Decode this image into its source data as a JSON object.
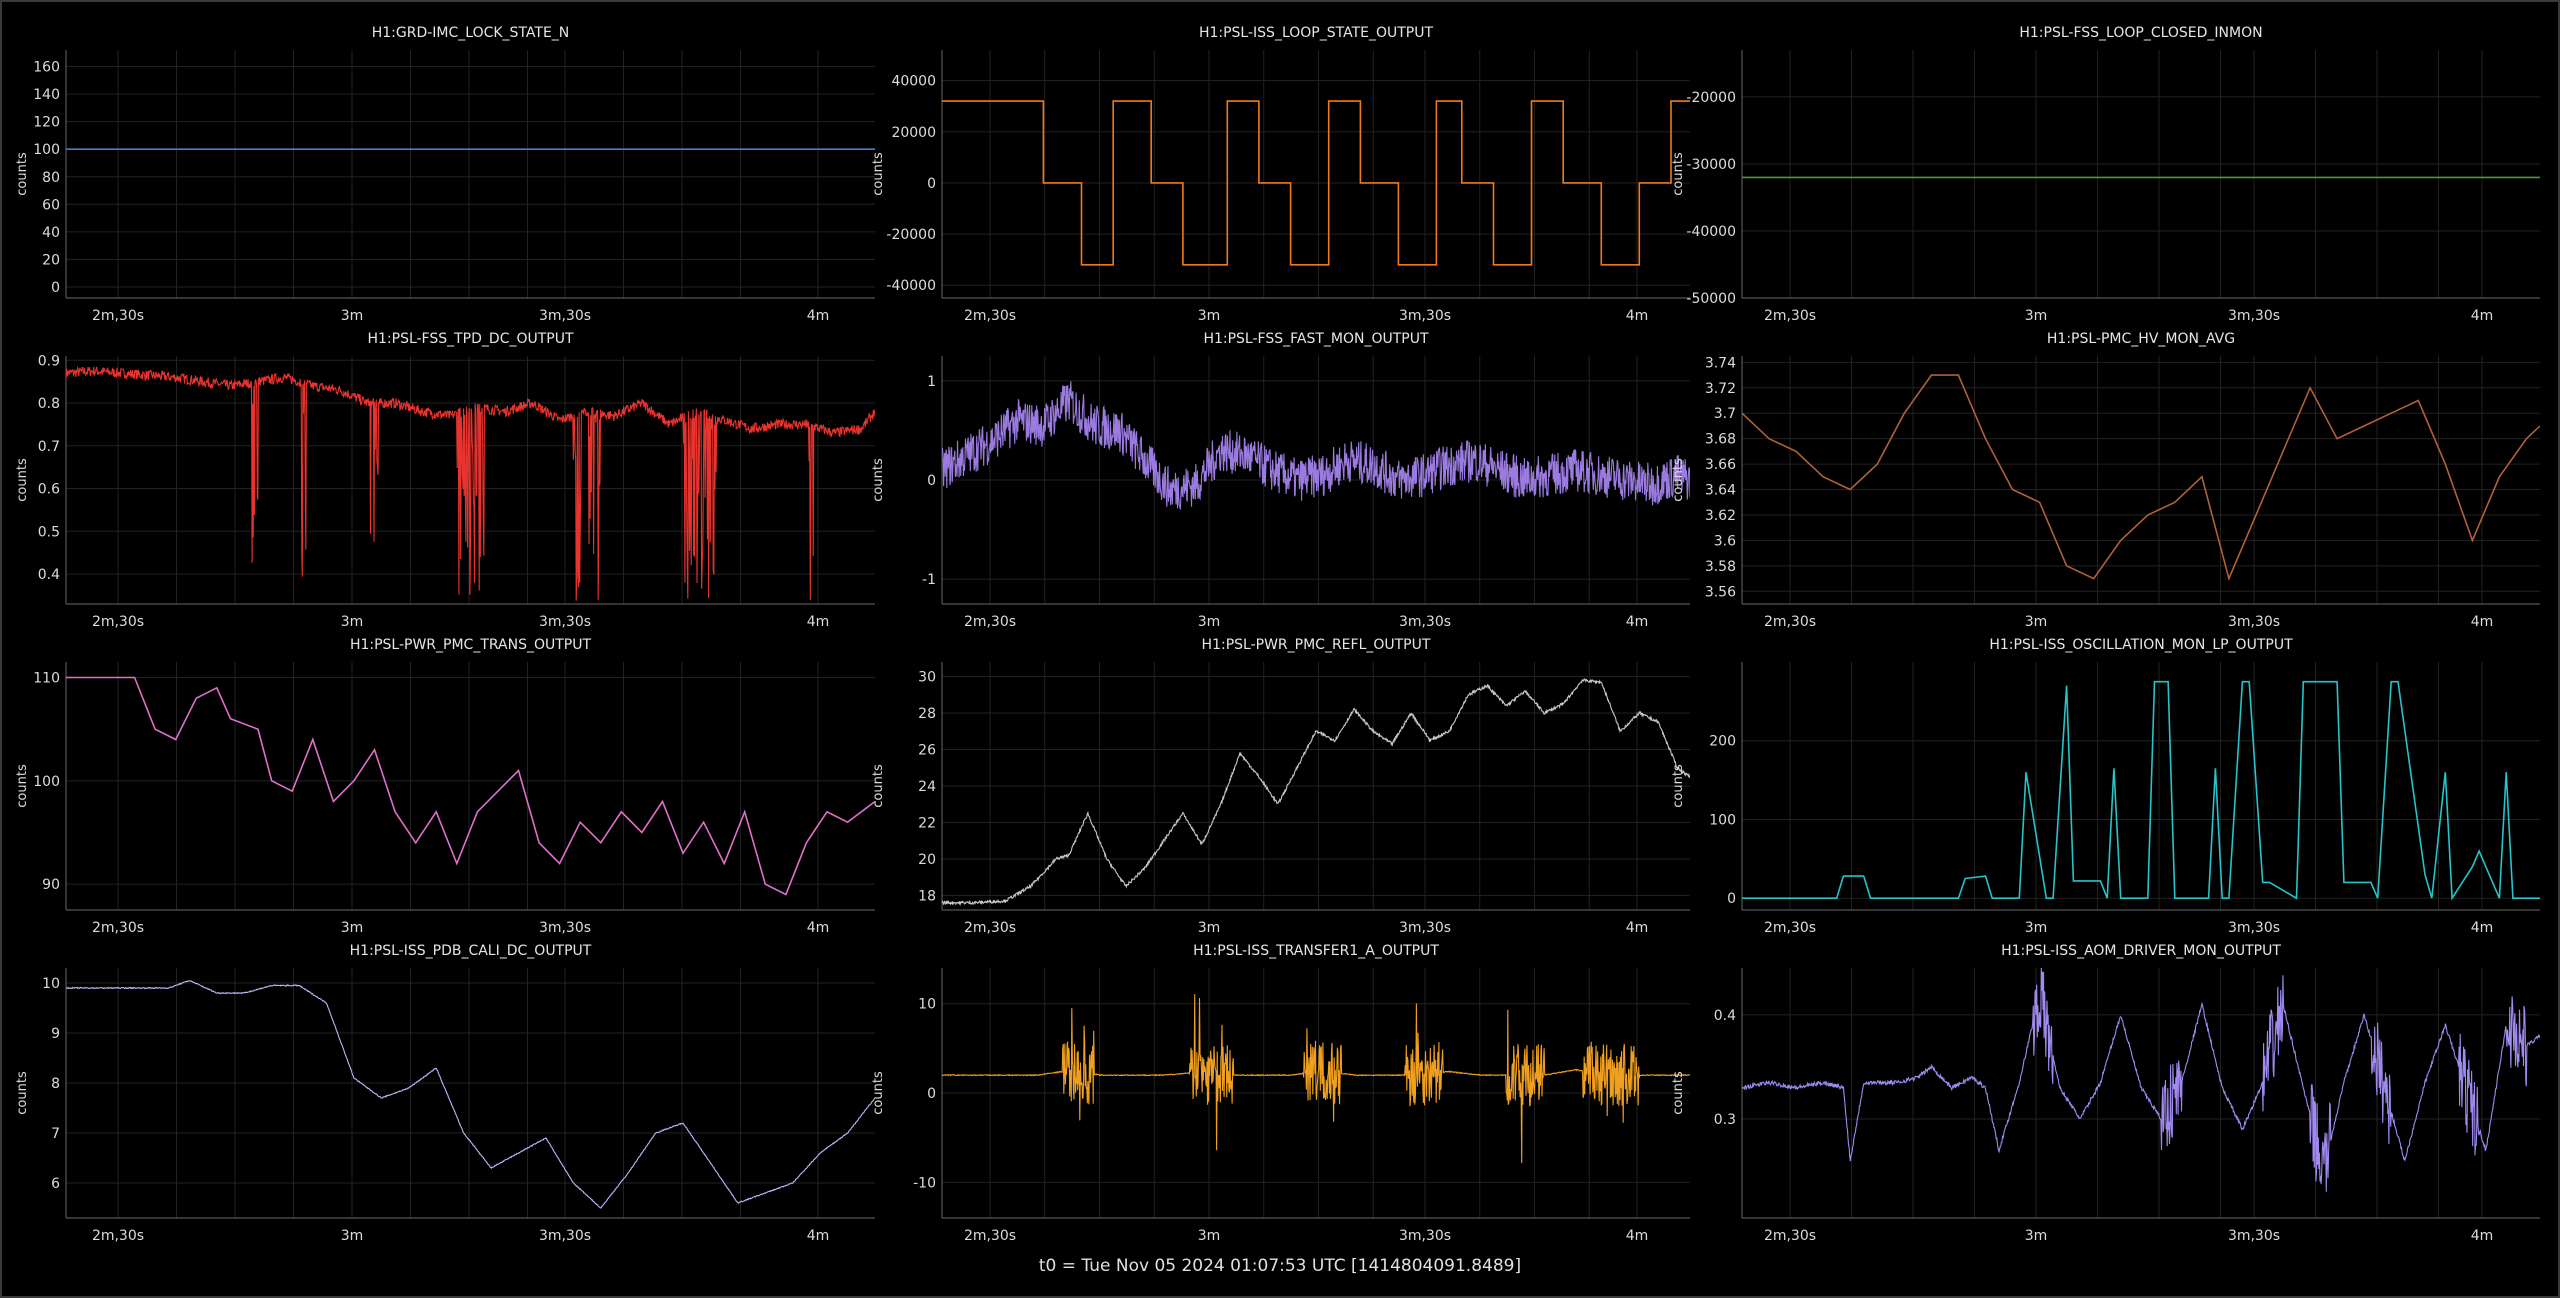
{
  "footer": "t0 = Tue Nov 05 2024 01:07:53 UTC [1414804091.8489]",
  "chart_data": [
    {
      "type": "line",
      "title": "H1:GRD-IMC_LOCK_STATE_N",
      "ylabel": "counts",
      "color": "#4a7bd0",
      "xticks": [
        "2m,30s",
        "3m",
        "3m,30s",
        "4m"
      ],
      "xlim": [
        140,
        258
      ],
      "yticks": [
        0,
        20,
        40,
        60,
        80,
        100,
        120,
        140,
        160
      ],
      "ylim": [
        -8,
        172
      ],
      "x": [
        140,
        258
      ],
      "y": [
        100,
        100
      ]
    },
    {
      "type": "line",
      "title": "H1:PSL-ISS_LOOP_STATE_OUTPUT",
      "ylabel": "counts",
      "color": "#f07a1a",
      "xticks": [
        "2m,30s",
        "3m",
        "3m,30s",
        "4m"
      ],
      "xlim": [
        140,
        258
      ],
      "yticks": [
        -40000,
        -20000,
        0,
        20000,
        40000
      ],
      "ylim": [
        -45000,
        52000
      ],
      "x": [
        140,
        156,
        156,
        162,
        162,
        167,
        167,
        173,
        173,
        178,
        178,
        185,
        185,
        190,
        190,
        195,
        195,
        201,
        201,
        206,
        206,
        212,
        212,
        218,
        218,
        222,
        222,
        227,
        227,
        233,
        233,
        238,
        238,
        244,
        244,
        250,
        250,
        255,
        255,
        258
      ],
      "y": [
        32000,
        32000,
        0,
        0,
        -32000,
        -32000,
        32000,
        32000,
        0,
        0,
        -32000,
        -32000,
        32000,
        32000,
        0,
        0,
        -32000,
        -32000,
        32000,
        32000,
        0,
        0,
        -32000,
        -32000,
        32000,
        32000,
        0,
        0,
        -32000,
        -32000,
        32000,
        32000,
        0,
        0,
        -32000,
        -32000,
        0,
        0,
        32000,
        32000
      ]
    },
    {
      "type": "line",
      "title": "H1:PSL-FSS_LOOP_CLOSED_INMON",
      "ylabel": "counts",
      "color": "#4a9a3a",
      "xticks": [
        "2m,30s",
        "3m",
        "3m,30s",
        "4m"
      ],
      "xlim": [
        140,
        258
      ],
      "yticks": [
        -50000,
        -40000,
        -30000,
        -20000
      ],
      "ylim": [
        -50000,
        -13000
      ],
      "x": [
        140,
        258
      ],
      "y": [
        -32000,
        -32000
      ]
    },
    {
      "type": "line",
      "title": "H1:PSL-FSS_TPD_DC_OUTPUT",
      "ylabel": "counts",
      "color": "#e8332e",
      "xticks": [
        "2m,30s",
        "3m",
        "3m,30s",
        "4m"
      ],
      "xlim": [
        140,
        258
      ],
      "yticks": [
        0.4,
        0.5,
        0.6,
        0.7,
        0.8,
        0.9
      ],
      "ylim": [
        0.33,
        0.91
      ],
      "x": [
        140,
        144,
        148,
        152,
        156,
        160,
        164,
        168,
        172,
        176,
        180,
        184,
        188,
        192,
        196,
        200,
        204,
        208,
        212,
        216,
        220,
        224,
        228,
        232,
        236,
        240,
        244,
        248,
        252,
        256,
        258
      ],
      "y": [
        0.87,
        0.875,
        0.87,
        0.865,
        0.86,
        0.85,
        0.84,
        0.85,
        0.86,
        0.84,
        0.83,
        0.8,
        0.8,
        0.78,
        0.77,
        0.79,
        0.78,
        0.8,
        0.76,
        0.78,
        0.77,
        0.8,
        0.75,
        0.78,
        0.76,
        0.74,
        0.75,
        0.75,
        0.73,
        0.74,
        0.78
      ]
    },
    {
      "type": "line",
      "title": "H1:PSL-FSS_FAST_MON_OUTPUT",
      "ylabel": "counts",
      "color": "#9b7be0",
      "xticks": [
        "2m,30s",
        "3m",
        "3m,30s",
        "4m"
      ],
      "xlim": [
        140,
        258
      ],
      "yticks": [
        -1,
        0,
        1
      ],
      "ylim": [
        -1.25,
        1.25
      ],
      "x": [
        140,
        144,
        148,
        152,
        156,
        160,
        164,
        168,
        172,
        176,
        180,
        184,
        188,
        192,
        196,
        200,
        204,
        208,
        212,
        216,
        220,
        224,
        228,
        232,
        236,
        240,
        244,
        248,
        252,
        256,
        258
      ],
      "y": [
        0.1,
        0.25,
        0.4,
        0.6,
        0.55,
        0.8,
        0.55,
        0.5,
        0.2,
        -0.1,
        -0.05,
        0.3,
        0.25,
        0.1,
        0.0,
        0.05,
        0.2,
        0.15,
        0.0,
        0.05,
        0.15,
        0.2,
        0.1,
        0.0,
        0.05,
        0.1,
        0.05,
        0.0,
        -0.05,
        0.05,
        0.0
      ]
    },
    {
      "type": "line",
      "title": "H1:PSL-PMC_HV_MON_AVG",
      "ylabel": "counts",
      "color": "#b0603a",
      "xticks": [
        "2m,30s",
        "3m",
        "3m,30s",
        "4m"
      ],
      "xlim": [
        140,
        258
      ],
      "yticks": [
        3.56,
        3.58,
        3.6,
        3.62,
        3.64,
        3.66,
        3.68,
        3.7,
        3.72,
        3.74
      ],
      "ylim": [
        3.55,
        3.745
      ],
      "x": [
        140,
        144,
        148,
        152,
        156,
        160,
        164,
        168,
        172,
        176,
        180,
        184,
        188,
        192,
        196,
        200,
        204,
        208,
        212,
        216,
        220,
        224,
        228,
        232,
        236,
        240,
        244,
        248,
        252,
        256,
        258
      ],
      "y": [
        3.7,
        3.68,
        3.67,
        3.65,
        3.64,
        3.66,
        3.7,
        3.73,
        3.73,
        3.68,
        3.64,
        3.63,
        3.58,
        3.57,
        3.6,
        3.62,
        3.63,
        3.65,
        3.57,
        3.62,
        3.67,
        3.72,
        3.68,
        3.69,
        3.7,
        3.71,
        3.66,
        3.6,
        3.65,
        3.68,
        3.69
      ]
    },
    {
      "type": "line",
      "title": "H1:PSL-PWR_PMC_TRANS_OUTPUT",
      "ylabel": "counts",
      "color": "#e070c8",
      "xticks": [
        "2m,30s",
        "3m",
        "3m,30s",
        "4m"
      ],
      "xlim": [
        140,
        258
      ],
      "yticks": [
        90,
        100,
        110
      ],
      "ylim": [
        87.5,
        111.5
      ],
      "x": [
        140,
        145,
        150,
        153,
        156,
        159,
        162,
        164,
        168,
        170,
        173,
        176,
        179,
        182,
        185,
        188,
        191,
        194,
        197,
        200,
        203,
        206,
        209,
        212,
        215,
        218,
        221,
        224,
        227,
        230,
        233,
        236,
        239,
        242,
        245,
        248,
        251,
        254,
        258
      ],
      "y": [
        110,
        110,
        110,
        105,
        104,
        108,
        109,
        106,
        105,
        100,
        99,
        104,
        98,
        100,
        103,
        97,
        94,
        97,
        92,
        97,
        99,
        101,
        94,
        92,
        96,
        94,
        97,
        95,
        98,
        93,
        96,
        92,
        97,
        90,
        89,
        94,
        97,
        96,
        98
      ]
    },
    {
      "type": "line",
      "title": "H1:PSL-PWR_PMC_REFL_OUTPUT",
      "ylabel": "counts",
      "color": "#c8c8c8",
      "xticks": [
        "2m,30s",
        "3m",
        "3m,30s",
        "4m"
      ],
      "xlim": [
        140,
        258
      ],
      "yticks": [
        18,
        20,
        22,
        24,
        26,
        28,
        30
      ],
      "ylim": [
        17.2,
        30.8
      ],
      "x": [
        140,
        145,
        150,
        154,
        158,
        160,
        163,
        166,
        169,
        172,
        175,
        178,
        181,
        184,
        187,
        190,
        193,
        196,
        199,
        202,
        205,
        208,
        211,
        214,
        217,
        220,
        223,
        226,
        229,
        232,
        235,
        238,
        241,
        244,
        247,
        250,
        253,
        256,
        258
      ],
      "y": [
        17.6,
        17.6,
        17.7,
        18.5,
        20,
        20.2,
        22.5,
        20,
        18.5,
        19.5,
        21,
        22.5,
        20.8,
        23,
        25.8,
        24.5,
        23,
        25,
        27,
        26.5,
        28.2,
        27,
        26.3,
        28,
        26.5,
        27,
        29,
        29.5,
        28.4,
        29.2,
        28,
        28.5,
        29.8,
        29.7,
        27,
        28,
        27.5,
        25,
        24.5
      ]
    },
    {
      "type": "line",
      "title": "H1:PSL-ISS_OSCILLATION_MON_LP_OUTPUT",
      "ylabel": "counts",
      "color": "#26c3c8",
      "xticks": [
        "2m,30s",
        "3m",
        "3m,30s",
        "4m"
      ],
      "xlim": [
        140,
        258
      ],
      "yticks": [
        0,
        100,
        200
      ],
      "ylim": [
        -15,
        300
      ],
      "x": [
        140,
        150,
        154,
        155,
        158,
        159,
        172,
        173,
        176,
        177,
        181,
        182,
        185,
        186,
        188,
        189,
        193,
        194,
        195,
        196,
        200,
        201,
        203,
        204,
        209,
        210,
        211,
        212,
        214,
        215,
        217,
        218,
        222,
        223,
        228,
        229,
        233,
        234,
        236,
        237,
        241,
        242,
        244,
        245,
        248,
        249,
        252,
        253,
        254,
        255,
        258
      ],
      "y": [
        0,
        0,
        0,
        28,
        28,
        0,
        0,
        25,
        28,
        0,
        0,
        160,
        0,
        0,
        270,
        22,
        22,
        0,
        165,
        0,
        0,
        275,
        275,
        0,
        0,
        165,
        0,
        0,
        275,
        275,
        20,
        20,
        0,
        275,
        275,
        20,
        20,
        0,
        275,
        275,
        30,
        0,
        160,
        0,
        40,
        60,
        0,
        160,
        0,
        0,
        0
      ]
    },
    {
      "type": "line",
      "title": "H1:PSL-ISS_PDB_CALI_DC_OUTPUT",
      "ylabel": "counts",
      "color": "#b8b8f8",
      "xticks": [
        "2m,30s",
        "3m",
        "3m,30s",
        "4m"
      ],
      "xlim": [
        140,
        258
      ],
      "yticks": [
        6,
        7,
        8,
        9,
        10
      ],
      "ylim": [
        5.3,
        10.3
      ],
      "x": [
        140,
        145,
        150,
        155,
        158,
        162,
        166,
        170,
        174,
        178,
        182,
        186,
        190,
        194,
        198,
        202,
        206,
        210,
        214,
        218,
        222,
        226,
        230,
        234,
        238,
        242,
        246,
        250,
        254,
        258
      ],
      "y": [
        9.9,
        9.9,
        9.9,
        9.9,
        10.05,
        9.8,
        9.8,
        9.95,
        9.95,
        9.6,
        8.1,
        7.7,
        7.9,
        8.3,
        7.0,
        6.3,
        6.6,
        6.9,
        6.0,
        5.5,
        6.2,
        7.0,
        7.2,
        6.4,
        5.6,
        5.8,
        6.0,
        6.6,
        7.0,
        7.7
      ]
    },
    {
      "type": "line",
      "title": "H1:PSL-ISS_TRANSFER1_A_OUTPUT",
      "ylabel": "counts",
      "color": "#f0a020",
      "xticks": [
        "2m,30s",
        "3m",
        "3m,30s",
        "4m"
      ],
      "xlim": [
        140,
        258
      ],
      "yticks": [
        -10,
        0,
        10
      ],
      "ylim": [
        -14,
        14
      ],
      "x": [
        140,
        145,
        150,
        155,
        160,
        165,
        170,
        175,
        180,
        185,
        190,
        195,
        200,
        205,
        210,
        215,
        220,
        225,
        230,
        235,
        240,
        245,
        250,
        255,
        258
      ],
      "y": [
        2,
        2,
        2,
        2,
        2.5,
        2,
        2,
        2,
        2.3,
        2,
        2,
        2,
        2.5,
        2,
        2,
        2,
        2.4,
        2,
        2,
        2,
        2.6,
        2,
        2,
        2,
        2
      ]
    },
    {
      "type": "line",
      "title": "H1:PSL-ISS_AOM_DRIVER_MON_OUTPUT",
      "ylabel": "counts",
      "color": "#a08af0",
      "xticks": [
        "2m,30s",
        "3m",
        "3m,30s",
        "4m"
      ],
      "xlim": [
        140,
        258
      ],
      "yticks": [
        0.3,
        0.4
      ],
      "ylim": [
        0.205,
        0.445
      ],
      "x": [
        140,
        144,
        148,
        152,
        155,
        156,
        158,
        163,
        166,
        168,
        171,
        174,
        176,
        178,
        181,
        184,
        187,
        190,
        193,
        196,
        199,
        202,
        205,
        208,
        211,
        214,
        217,
        220,
        223,
        226,
        229,
        232,
        235,
        238,
        241,
        244,
        247,
        250,
        253,
        256,
        258
      ],
      "y": [
        0.33,
        0.335,
        0.33,
        0.335,
        0.33,
        0.26,
        0.335,
        0.335,
        0.34,
        0.35,
        0.33,
        0.34,
        0.33,
        0.27,
        0.335,
        0.42,
        0.33,
        0.3,
        0.335,
        0.4,
        0.33,
        0.3,
        0.335,
        0.41,
        0.33,
        0.29,
        0.335,
        0.41,
        0.33,
        0.25,
        0.335,
        0.4,
        0.33,
        0.26,
        0.335,
        0.39,
        0.33,
        0.27,
        0.39,
        0.37,
        0.38
      ]
    }
  ]
}
